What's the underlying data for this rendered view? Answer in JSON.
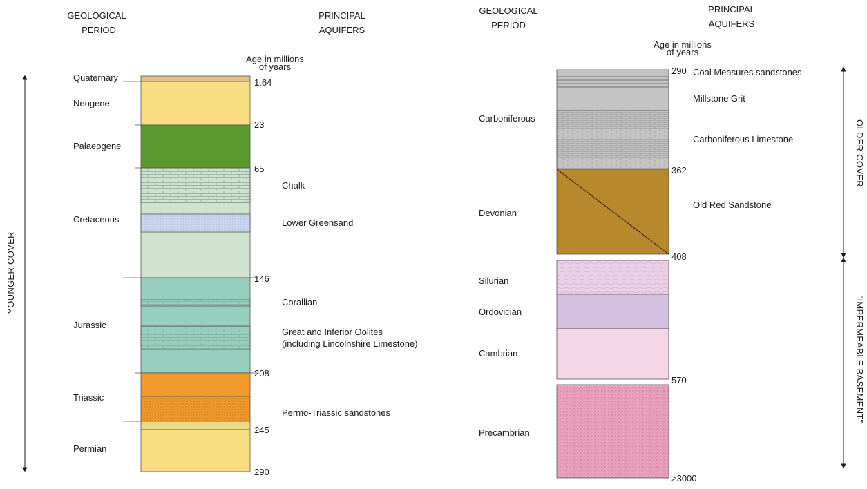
{
  "left": {
    "header_period": [
      "GEOLOGICAL",
      "PERIOD"
    ],
    "header_aquifers": [
      "PRINCIPAL",
      "AQUIFERS"
    ],
    "age_label": [
      "Age in millions",
      "of years"
    ],
    "side_label": "YOUNGER COVER",
    "periods": [
      {
        "name": "Quaternary",
        "id": "quaternary"
      },
      {
        "name": "Neogene",
        "id": "neogene"
      },
      {
        "name": "Palaeogene",
        "id": "palaeogene"
      },
      {
        "name": "Cretaceous",
        "id": "cretaceous"
      },
      {
        "name": "Jurassic",
        "id": "jurassic"
      },
      {
        "name": "Triassic",
        "id": "triassic"
      },
      {
        "name": "Permian",
        "id": "permian"
      }
    ],
    "ages": [
      "1.64",
      "23",
      "65",
      "146",
      "208",
      "245",
      "290"
    ],
    "aquifers": [
      {
        "id": "chalk",
        "lines": [
          "Chalk"
        ]
      },
      {
        "id": "lower-greensand",
        "lines": [
          "Lower Greensand"
        ]
      },
      {
        "id": "corallian",
        "lines": [
          "Corallian"
        ]
      },
      {
        "id": "oolites",
        "lines": [
          "Great and Inferior Oolites",
          "(including Lincolnshire Limestone)"
        ]
      },
      {
        "id": "permo-triassic",
        "lines": [
          "Permo-Triassic sandstones"
        ]
      }
    ]
  },
  "right": {
    "header_period": [
      "GEOLOGICAL",
      "PERIOD"
    ],
    "header_aquifers": [
      "PRINCIPAL",
      "AQUIFERS"
    ],
    "age_label": [
      "Age in millions",
      "of years"
    ],
    "side_label_top": "OLDER COVER",
    "side_label_bottom": "\"IMPERMEABLE BASEMENT\"",
    "periods": [
      {
        "name": "Carboniferous",
        "id": "carboniferous"
      },
      {
        "name": "Devonian",
        "id": "devonian"
      },
      {
        "name": "Silurian",
        "id": "silurian"
      },
      {
        "name": "Ordovician",
        "id": "ordovician"
      },
      {
        "name": "Cambrian",
        "id": "cambrian"
      },
      {
        "name": "Precambrian",
        "id": "precambrian"
      }
    ],
    "ages": [
      "290",
      "362",
      "408",
      "570",
      ">3000"
    ],
    "aquifers": [
      {
        "id": "coal-measures",
        "lines": [
          "Coal Measures sandstones"
        ]
      },
      {
        "id": "millstone-grit",
        "lines": [
          "Millstone Grit"
        ]
      },
      {
        "id": "carboniferous-limestone",
        "lines": [
          "Carboniferous Limestone"
        ]
      },
      {
        "id": "old-red-sandstone",
        "lines": [
          "Old Red Sandstone"
        ]
      }
    ]
  },
  "colors": {
    "quaternary": "#e3c08a",
    "neogene": "#f8de80",
    "palaeogene": "#5a9a2c",
    "cretaceous": "#cfe3cf",
    "lower_greensand": "#c8d4ec",
    "jurassic": "#97cfbe",
    "triassic": "#f29a2c",
    "permian": "#f8de80",
    "carboniferous": "#c4c4c4",
    "devonian": "#b8892c",
    "silurian": "#ecd0e8",
    "ordovician": "#d4c0e0",
    "cambrian": "#f4d6e6",
    "precambrian": "#e8a0bc"
  }
}
